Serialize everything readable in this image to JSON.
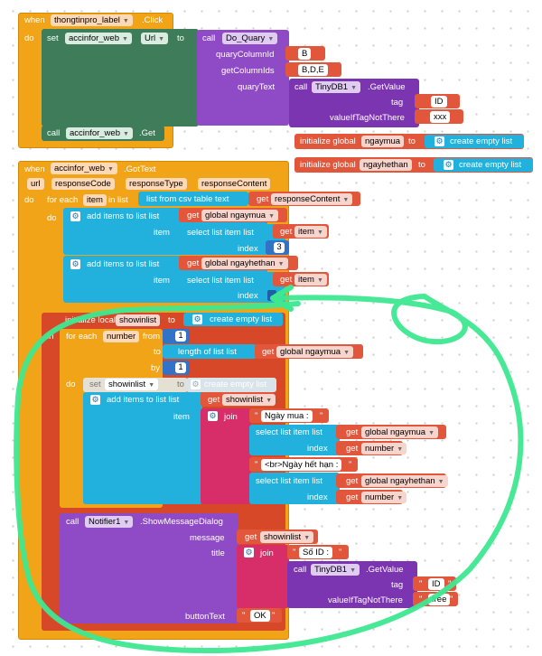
{
  "event1": {
    "when": "when",
    "component": "thongtinpro_label",
    "event": ".Click",
    "do": "do",
    "set_kw": "set",
    "target": "accinfor_web",
    "prop": "Url",
    "to": "to",
    "call_kw": "call",
    "proc": "Do_Quary",
    "arg1_label": "quaryColumnId",
    "arg1_value": "B",
    "arg2_label": "getColumnIds",
    "arg2_value": "B,D,E",
    "arg3_label": "quaryText",
    "tinydb_call": "call",
    "tinydb": "TinyDB1",
    "getvalue": ".GetValue",
    "tag_label": "tag",
    "tag_value": "ID",
    "vit_label": "valueIfTagNotThere",
    "vit_value": "xxx",
    "call2": "call",
    "call2_target": "accinfor_web",
    "call2_method": ".Get"
  },
  "globals": [
    {
      "init": "initialize global",
      "name": "ngaymua",
      "to": "to",
      "value": "create empty list"
    },
    {
      "init": "initialize global",
      "name": "ngayhethan",
      "to": "to",
      "value": "create empty list"
    }
  ],
  "event2": {
    "when": "when",
    "component": "accinfor_web",
    "event": ".GotText",
    "params": [
      "url",
      "responseCode",
      "responseType",
      "responseContent"
    ],
    "do": "do",
    "foreach": "for each",
    "item": "item",
    "inlist": "in list",
    "csv": "list from csv table  text",
    "get": "get",
    "rc": "responseContent",
    "inner_do": "do",
    "add1": "add items to list  list",
    "g_ngaymua": "global ngaymua",
    "item_lbl": "item",
    "select": "select list item  list",
    "get_item": "item",
    "index": "index",
    "idx1": "3",
    "add2": "add items to list  list",
    "g_ngayhethan": "global ngayhethan",
    "item_lbl2": "item",
    "select2": "select list item  list",
    "get_item2": "item",
    "index2": "index"
  },
  "local": {
    "init": "initialize local",
    "name": "showinlist",
    "to": "to",
    "value": "create empty list",
    "in": "in",
    "foreach": "for each",
    "var": "number",
    "from": "from",
    "from_v": "1",
    "to2": "to",
    "length": "length of list  list",
    "g_ngaymua": "global ngaymua",
    "by": "by",
    "by_v": "1",
    "do": "do",
    "set_kw": "set",
    "set_var": "showinlist",
    "set_to": "to",
    "set_value": "create empty list",
    "add": "add items to list  list",
    "get_show": "showinlist",
    "item_lbl": "item",
    "join": "join",
    "s1": "Ngày mua :",
    "sel1": "select list item  list",
    "sel1_list": "global ngaymua",
    "index": "index",
    "num": "number",
    "s2": "<br>Ngày hết hạn :",
    "sel2": "select list item  list",
    "sel2_list": "global ngayhethan",
    "num2": "number"
  },
  "notifier": {
    "call": "call",
    "comp": "Notifier1",
    "method": ".ShowMessageDialog",
    "message": "message",
    "msg_get": "showinlist",
    "title": "title",
    "join": "join",
    "s1": "Số ID :",
    "call2": "call",
    "tinydb": "TinyDB1",
    "getvalue": ".GetValue",
    "tag": "tag",
    "tag_v": "ID",
    "vit": "valueIfTagNotThere",
    "vit_v": "free",
    "button": "buttonText",
    "button_v": "OK"
  },
  "get_kw": "get",
  "colors": {
    "event": "#f2a418",
    "component": "#3e7c5a",
    "procedure": "#8e4bc5",
    "text": "#e2573b",
    "list": "#22b1dc",
    "join": "#d72d68",
    "highlight": "#3ee890"
  }
}
